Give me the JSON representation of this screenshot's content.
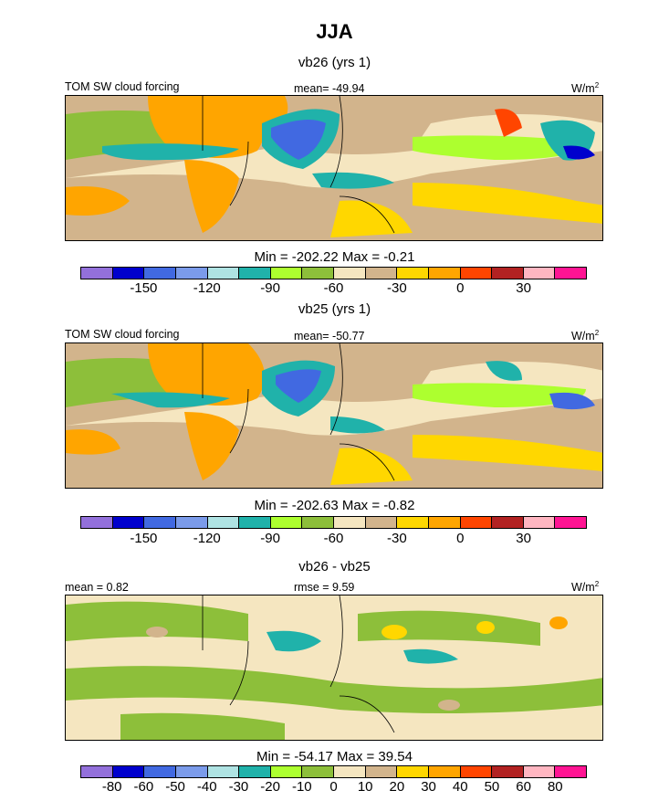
{
  "title": "JJA",
  "palette": [
    "#9370DB",
    "#0000CD",
    "#4169E1",
    "#7B9BEA",
    "#AFE3E3",
    "#20B2AA",
    "#ADFF2F",
    "#8DBF3A",
    "#F5E6C0",
    "#D2B48C",
    "#FFD700",
    "#FFA500",
    "#FF4500",
    "#B22222",
    "#FFB6C1",
    "#FF1493"
  ],
  "panels": [
    {
      "title": "vb26 (yrs 1)",
      "left_label": "TOM SW cloud forcing",
      "center_label": "mean= -49.94",
      "units": "W/m",
      "units_sup": "2",
      "minmax": "Min = -202.22 Max =  -0.21",
      "ticks": [
        "-150",
        "-120",
        "-90",
        "-60",
        "-30",
        "0",
        "30"
      ]
    },
    {
      "title": "vb25 (yrs 1)",
      "left_label": "TOM SW cloud forcing",
      "center_label": "mean= -50.77",
      "units": "W/m",
      "units_sup": "2",
      "minmax": "Min = -202.63 Max =  -0.82",
      "ticks": [
        "-150",
        "-120",
        "-90",
        "-60",
        "-30",
        "0",
        "30"
      ]
    },
    {
      "title": "vb26 - vb25",
      "left_label": "mean =   0.82",
      "center_label": "rmse =   9.59",
      "units": "W/m",
      "units_sup": "2",
      "minmax": "Min = -54.17 Max =  39.54",
      "ticks": [
        "-80",
        "-60",
        "-50",
        "-40",
        "-30",
        "-20",
        "-10",
        "0",
        "10",
        "20",
        "30",
        "40",
        "50",
        "60",
        "80"
      ]
    }
  ]
}
